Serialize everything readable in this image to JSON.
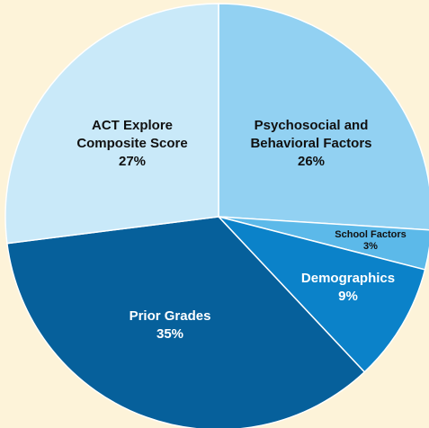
{
  "chart_data": {
    "type": "pie",
    "categories": [
      "Psychosocial and Behavioral Factors",
      "School Factors",
      "Demographics",
      "Prior Grades",
      "ACT Explore Composite Score"
    ],
    "values": [
      26,
      3,
      9,
      35,
      27
    ],
    "value_labels": [
      "26%",
      "3%",
      "9%",
      "35%",
      "27%"
    ],
    "colors": [
      "#92d1f2",
      "#5cb9e9",
      "#0b82c9",
      "#06609b",
      "#c9e9f9"
    ],
    "label_colors": [
      "#111111",
      "#111111",
      "#ffffff",
      "#ffffff",
      "#111111"
    ]
  }
}
